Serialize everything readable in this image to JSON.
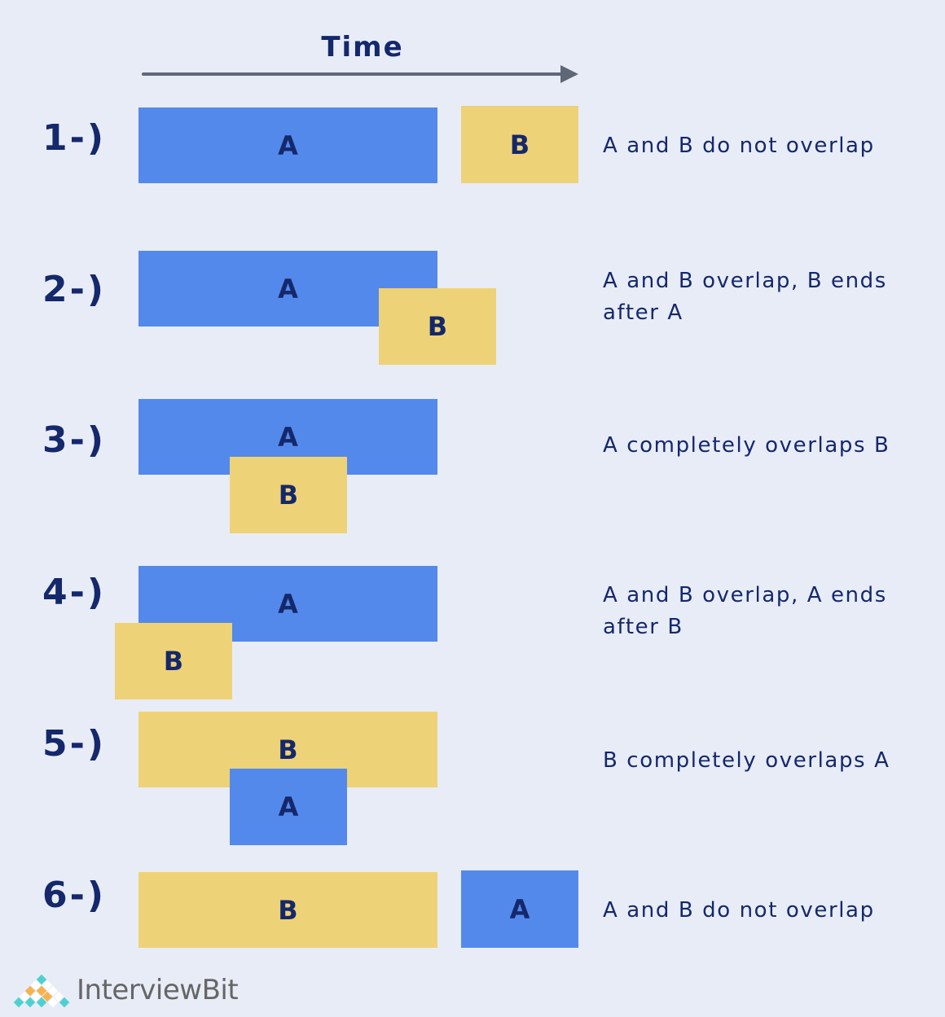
{
  "title": "Time",
  "colors": {
    "background": "#e8ecf7",
    "a_bar": "#5489ec",
    "b_bar": "#eed277",
    "text": "#14286b",
    "arrow": "#5f6777"
  },
  "rows": [
    {
      "number": "1-)",
      "first": "A",
      "second": "B",
      "description": "A and B do not overlap"
    },
    {
      "number": "2-)",
      "first": "A",
      "second": "B",
      "description": "A and B overlap, B ends after A"
    },
    {
      "number": "3-)",
      "first": "A",
      "second": "B",
      "description": "A completely overlaps B"
    },
    {
      "number": "4-)",
      "first": "A",
      "second": "B",
      "description": "A and B overlap, A ends after B"
    },
    {
      "number": "5-)",
      "first": "B",
      "second": "A",
      "description": "B completely overlaps A"
    },
    {
      "number": "6-)",
      "first": "B",
      "second": "A",
      "description": "A and B do not overlap"
    }
  ],
  "logo": {
    "text": "InterviewBit"
  }
}
